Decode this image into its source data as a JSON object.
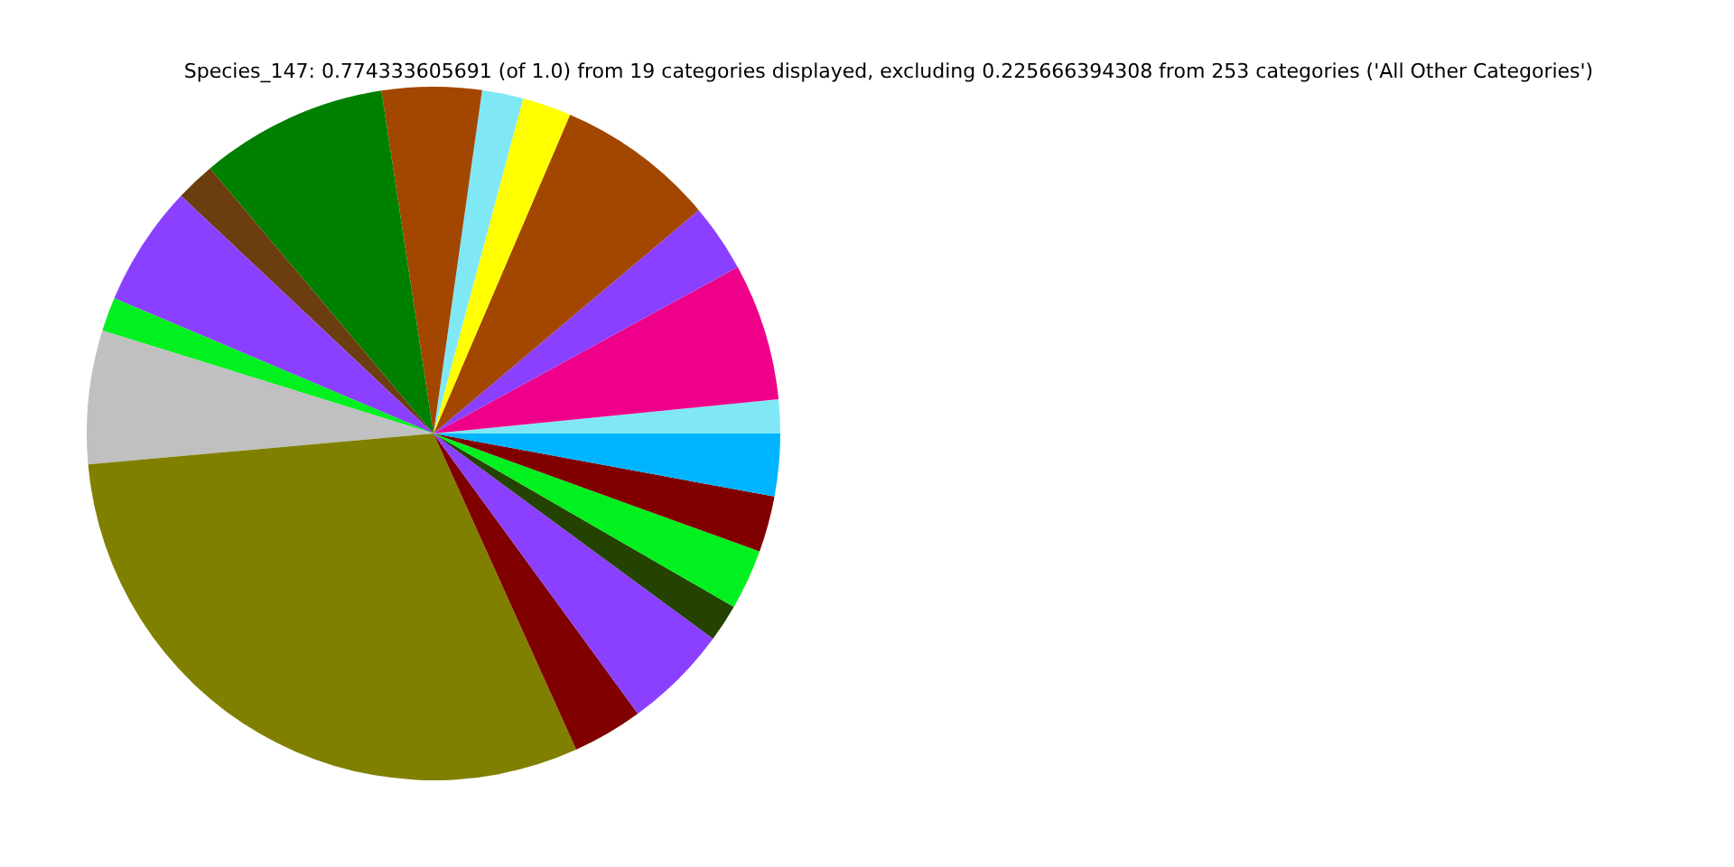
{
  "chart_data": {
    "type": "pie",
    "title": "Species_147: 0.774333605691 (of 1.0) from 19 categories displayed, excluding 0.225666394308 from 253 categories ('All Other Categories')",
    "categories": [
      null,
      null,
      null,
      null,
      null,
      null,
      null,
      null,
      null,
      null,
      null,
      null,
      null,
      null,
      null,
      null,
      null,
      null,
      null
    ],
    "values": [
      1.58,
      6.39,
      3.17,
      7.42,
      2.28,
      1.92,
      4.64,
      8.75,
      1.83,
      5.64,
      1.58,
      6.22,
      30.33,
      3.28,
      4.89,
      1.75,
      2.81,
      2.61,
      2.91
    ],
    "colors": [
      "#80e8f5",
      "#ee008a",
      "#8b40ff",
      "#a24600",
      "#ffff00",
      "#80e8f5",
      "#a24600",
      "#008000",
      "#6b3d0f",
      "#8b40ff",
      "#00f020",
      "#c0c0c0",
      "#808000",
      "#800000",
      "#8b40ff",
      "#254300",
      "#00f020",
      "#800000",
      "#00b4ff"
    ]
  }
}
